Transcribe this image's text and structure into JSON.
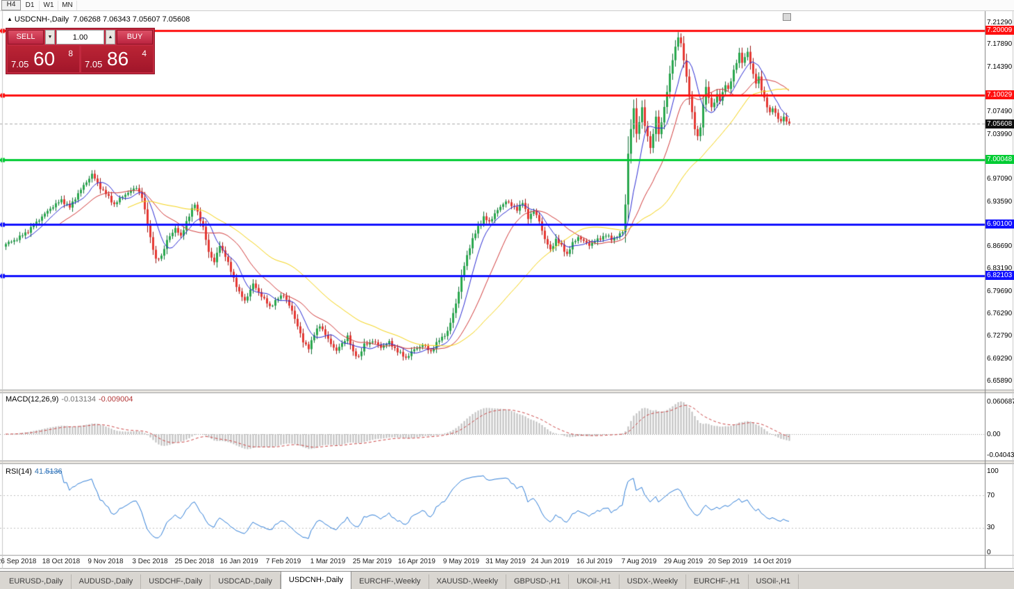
{
  "toolbar": {
    "timeframes": [
      {
        "label": "H4",
        "active": true
      },
      {
        "label": "D1",
        "active": false
      },
      {
        "label": "W1",
        "active": false
      },
      {
        "label": "MN",
        "active": false
      }
    ]
  },
  "chart_header": {
    "collapse_icon": "▲",
    "symbol_label": "USDCNH-,Daily",
    "ohlc": "7.06268 7.06343 7.05607 7.05608"
  },
  "trade_panel": {
    "sell_label": "SELL",
    "buy_label": "BUY",
    "volume": "1.00",
    "down_icon": "▼",
    "up_icon": "▲",
    "sell_price": {
      "prefix": "7.05",
      "big": "60",
      "pip": "8"
    },
    "buy_price": {
      "prefix": "7.05",
      "big": "86",
      "pip": "4"
    }
  },
  "price_axis": {
    "labels": [
      {
        "text": "7.21290"
      },
      {
        "text": "7.20009",
        "bg": "#ff0f0f",
        "fg": "#ffffff"
      },
      {
        "text": "7.17890"
      },
      {
        "text": "7.14390"
      },
      {
        "text": "7.10029",
        "bg": "#ff0f0f",
        "fg": "#ffffff"
      },
      {
        "text": "7.07490"
      },
      {
        "text": "7.05608",
        "bg": "#0f0f0f",
        "fg": "#ffffff"
      },
      {
        "text": "7.03990"
      },
      {
        "text": "7.00048",
        "bg": "#00cc33",
        "fg": "#ffffff"
      },
      {
        "text": "6.97090"
      },
      {
        "text": "6.93590"
      },
      {
        "text": "6.90100",
        "bg": "#1010ff",
        "fg": "#ffffff"
      },
      {
        "text": "6.86690"
      },
      {
        "text": "6.83190"
      },
      {
        "text": "6.82103",
        "bg": "#1010ff",
        "fg": "#ffffff"
      },
      {
        "text": "6.79690"
      },
      {
        "text": "6.76290"
      },
      {
        "text": "6.72790"
      },
      {
        "text": "6.69290"
      },
      {
        "text": "6.65890"
      }
    ]
  },
  "macd_panel": {
    "name": "MACD(12,26,9)",
    "value_main": "-0.013134",
    "value_signal": "-0.009004",
    "axis_labels": [
      "0.060687",
      "0.00",
      "-0.04043"
    ]
  },
  "rsi_panel": {
    "name": "RSI(14)",
    "value": "41.5136",
    "axis_labels": [
      "100",
      "70",
      "30",
      "0"
    ]
  },
  "date_axis": {
    "labels": [
      "26 Sep 2018",
      "18 Oct 2018",
      "9 Nov 2018",
      "3 Dec 2018",
      "25 Dec 2018",
      "16 Jan 2019",
      "7 Feb 2019",
      "1 Mar 2019",
      "25 Mar 2019",
      "16 Apr 2019",
      "9 May 2019",
      "31 May 2019",
      "24 Jun 2019",
      "16 Jul 2019",
      "7 Aug 2019",
      "29 Aug 2019",
      "20 Sep 2019",
      "14 Oct 2019"
    ]
  },
  "tabs": [
    {
      "label": "EURUSD-,Daily",
      "active": false
    },
    {
      "label": "AUDUSD-,Daily",
      "active": false
    },
    {
      "label": "USDCHF-,Daily",
      "active": false
    },
    {
      "label": "USDCAD-,Daily",
      "active": false
    },
    {
      "label": "USDCNH-,Daily",
      "active": true
    },
    {
      "label": "EURCHF-,Weekly",
      "active": false
    },
    {
      "label": "XAUUSD-,Weekly",
      "active": false
    },
    {
      "label": "GBPUSD-,H1",
      "active": false
    },
    {
      "label": "UKOil-,H1",
      "active": false
    },
    {
      "label": "USDX-,Weekly",
      "active": false
    },
    {
      "label": "EURCHF-,H1",
      "active": false
    },
    {
      "label": "USOil-,H1",
      "active": false
    }
  ],
  "chart_data": {
    "type": "candlestick",
    "symbol": "USDCNH",
    "timeframe": "Daily",
    "bars": 283,
    "price_range": [
      6.6589,
      7.2129
    ],
    "ohlc_current": {
      "open": 7.06268,
      "high": 7.06343,
      "low": 7.05607,
      "close": 7.05608
    },
    "current_price": 7.05608,
    "levels": [
      {
        "price": 7.20009,
        "color": "#ff0f0f"
      },
      {
        "price": 7.10029,
        "color": "#ff0f0f"
      },
      {
        "price": 7.00048,
        "color": "#00cc33"
      },
      {
        "price": 6.901,
        "color": "#1010ff"
      },
      {
        "price": 6.82103,
        "color": "#1010ff"
      }
    ],
    "candle_colors": {
      "up": "#29a84e",
      "up_border": "#0e6e33",
      "down": "#e63832",
      "down_border": "#991311"
    },
    "moving_averages": [
      {
        "period": 8,
        "color": "#2b2bd4"
      },
      {
        "period": 20,
        "color": "#d23a3a"
      },
      {
        "period": 45,
        "color": "#f5d312"
      }
    ],
    "macd": {
      "fast": 12,
      "slow": 26,
      "signal": 9,
      "current_main": -0.013134,
      "current_signal": -0.009004,
      "axis_range": [
        -0.04043,
        0.060687
      ],
      "hist_color": "#bdbdbd",
      "signal_color": "#cc4949"
    },
    "rsi": {
      "period": 14,
      "current": 41.5136,
      "upper": 70,
      "lower": 30,
      "range": [
        0,
        100
      ],
      "color": "#2f7ed8"
    },
    "date_tick_bars": [
      4,
      20,
      36,
      52,
      68,
      84,
      100,
      116,
      132,
      148,
      164,
      180,
      196,
      212,
      228,
      244,
      260,
      276
    ],
    "closes_keyframes": [
      [
        0,
        6.87
      ],
      [
        4,
        6.878
      ],
      [
        8,
        6.89
      ],
      [
        12,
        6.908
      ],
      [
        16,
        6.925
      ],
      [
        20,
        6.938
      ],
      [
        23,
        6.927
      ],
      [
        26,
        6.948
      ],
      [
        29,
        6.966
      ],
      [
        31,
        6.978
      ],
      [
        34,
        6.957
      ],
      [
        36,
        6.948
      ],
      [
        39,
        6.931
      ],
      [
        42,
        6.944
      ],
      [
        45,
        6.952
      ],
      [
        47,
        6.958
      ],
      [
        49,
        6.942
      ],
      [
        52,
        6.88
      ],
      [
        54,
        6.845
      ],
      [
        56,
        6.852
      ],
      [
        58,
        6.875
      ],
      [
        61,
        6.895
      ],
      [
        63,
        6.881
      ],
      [
        65,
        6.905
      ],
      [
        68,
        6.932
      ],
      [
        71,
        6.895
      ],
      [
        73,
        6.858
      ],
      [
        75,
        6.842
      ],
      [
        77,
        6.868
      ],
      [
        79,
        6.852
      ],
      [
        81,
        6.828
      ],
      [
        84,
        6.795
      ],
      [
        86,
        6.782
      ],
      [
        89,
        6.808
      ],
      [
        92,
        6.79
      ],
      [
        95,
        6.773
      ],
      [
        98,
        6.786
      ],
      [
        100,
        6.792
      ],
      [
        103,
        6.766
      ],
      [
        105,
        6.744
      ],
      [
        107,
        6.718
      ],
      [
        109,
        6.71
      ],
      [
        111,
        6.73
      ],
      [
        113,
        6.745
      ],
      [
        115,
        6.73
      ],
      [
        116,
        6.722
      ],
      [
        119,
        6.705
      ],
      [
        121,
        6.716
      ],
      [
        123,
        6.728
      ],
      [
        125,
        6.702
      ],
      [
        127,
        6.696
      ],
      [
        129,
        6.714
      ],
      [
        132,
        6.72
      ],
      [
        135,
        6.711
      ],
      [
        138,
        6.718
      ],
      [
        141,
        6.704
      ],
      [
        144,
        6.694
      ],
      [
        147,
        6.707
      ],
      [
        150,
        6.714
      ],
      [
        153,
        6.704
      ],
      [
        156,
        6.722
      ],
      [
        159,
        6.734
      ],
      [
        161,
        6.763
      ],
      [
        163,
        6.796
      ],
      [
        164,
        6.82
      ],
      [
        166,
        6.853
      ],
      [
        168,
        6.877
      ],
      [
        170,
        6.897
      ],
      [
        172,
        6.911
      ],
      [
        174,
        6.904
      ],
      [
        176,
        6.917
      ],
      [
        178,
        6.927
      ],
      [
        180,
        6.937
      ],
      [
        182,
        6.929
      ],
      [
        184,
        6.924
      ],
      [
        186,
        6.934
      ],
      [
        188,
        6.911
      ],
      [
        190,
        6.921
      ],
      [
        192,
        6.906
      ],
      [
        194,
        6.877
      ],
      [
        196,
        6.861
      ],
      [
        198,
        6.877
      ],
      [
        200,
        6.867
      ],
      [
        202,
        6.854
      ],
      [
        204,
        6.871
      ],
      [
        206,
        6.881
      ],
      [
        208,
        6.874
      ],
      [
        210,
        6.869
      ],
      [
        212,
        6.874
      ],
      [
        214,
        6.879
      ],
      [
        216,
        6.884
      ],
      [
        218,
        6.877
      ],
      [
        220,
        6.882
      ],
      [
        222,
        6.888
      ],
      [
        223,
        6.932
      ],
      [
        224,
        7.01
      ],
      [
        225,
        7.048
      ],
      [
        226,
        7.078
      ],
      [
        227,
        7.042
      ],
      [
        228,
        7.058
      ],
      [
        229,
        7.083
      ],
      [
        230,
        7.05
      ],
      [
        231,
        7.038
      ],
      [
        232,
        7.018
      ],
      [
        233,
        7.042
      ],
      [
        234,
        7.065
      ],
      [
        235,
        7.04
      ],
      [
        236,
        7.058
      ],
      [
        237,
        7.083
      ],
      [
        238,
        7.105
      ],
      [
        239,
        7.132
      ],
      [
        240,
        7.155
      ],
      [
        241,
        7.175
      ],
      [
        242,
        7.191
      ],
      [
        243,
        7.178
      ],
      [
        244,
        7.155
      ],
      [
        245,
        7.128
      ],
      [
        246,
        7.1
      ],
      [
        247,
        7.072
      ],
      [
        248,
        7.048
      ],
      [
        249,
        7.036
      ],
      [
        250,
        7.052
      ],
      [
        251,
        7.085
      ],
      [
        252,
        7.112
      ],
      [
        253,
        7.096
      ],
      [
        254,
        7.082
      ],
      [
        255,
        7.09
      ],
      [
        256,
        7.1
      ],
      [
        257,
        7.092
      ],
      [
        258,
        7.104
      ],
      [
        259,
        7.118
      ],
      [
        260,
        7.108
      ],
      [
        261,
        7.122
      ],
      [
        262,
        7.138
      ],
      [
        263,
        7.152
      ],
      [
        264,
        7.165
      ],
      [
        265,
        7.15
      ],
      [
        266,
        7.158
      ],
      [
        267,
        7.168
      ],
      [
        268,
        7.15
      ],
      [
        269,
        7.132
      ],
      [
        270,
        7.118
      ],
      [
        271,
        7.128
      ],
      [
        272,
        7.11
      ],
      [
        273,
        7.095
      ],
      [
        274,
        7.082
      ],
      [
        275,
        7.072
      ],
      [
        276,
        7.082
      ],
      [
        277,
        7.072
      ],
      [
        278,
        7.064
      ],
      [
        279,
        7.058
      ],
      [
        280,
        7.068
      ],
      [
        281,
        7.06
      ],
      [
        282,
        7.056
      ]
    ]
  }
}
